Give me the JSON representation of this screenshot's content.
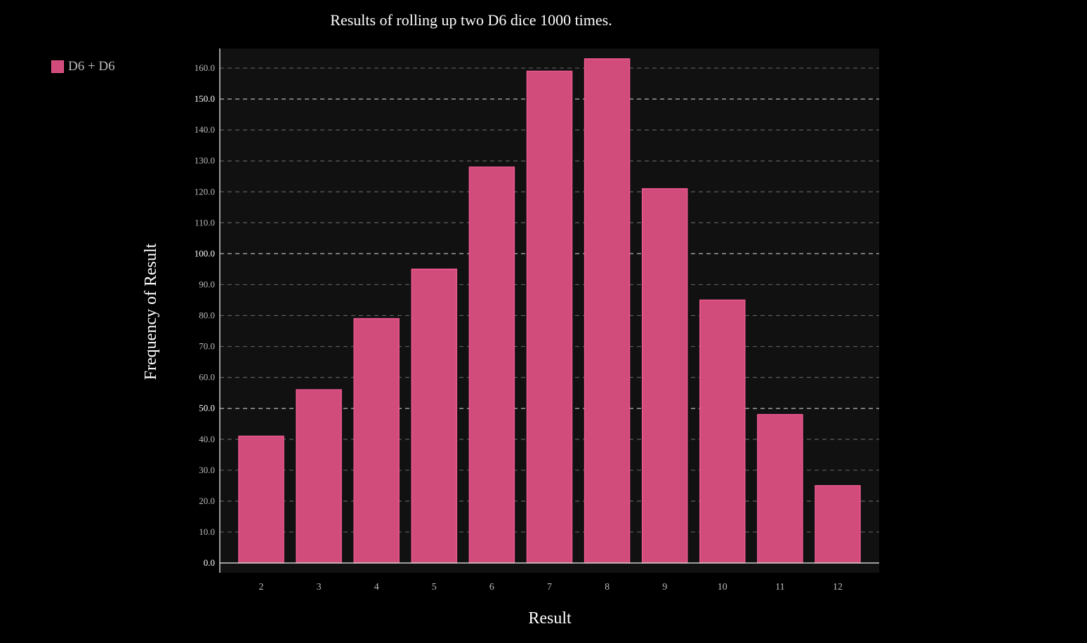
{
  "chart_data": {
    "type": "bar",
    "title": "Results of rolling up two D6 dice 1000 times.",
    "xlabel": "Result",
    "ylabel": "Frequency of Result",
    "categories": [
      "2",
      "3",
      "4",
      "5",
      "6",
      "7",
      "8",
      "9",
      "10",
      "11",
      "12"
    ],
    "series": [
      {
        "name": "D6 + D6",
        "values": [
          41,
          56,
          79,
          95,
          128,
          159,
          163,
          121,
          85,
          48,
          25
        ]
      }
    ],
    "ylim": [
      0,
      166
    ],
    "yticks": [
      "0.0",
      "10.0",
      "20.0",
      "30.0",
      "40.0",
      "50.0",
      "60.0",
      "70.0",
      "80.0",
      "90.0",
      "100.0",
      "110.0",
      "120.0",
      "130.0",
      "140.0",
      "150.0",
      "160.0"
    ],
    "grid": true,
    "legend_position": "top-left",
    "colors": {
      "bar_fill": "#d14b7b",
      "bar_stroke": "#ee5a91",
      "plot_bg": "#111111",
      "page_bg": "#000000"
    }
  }
}
